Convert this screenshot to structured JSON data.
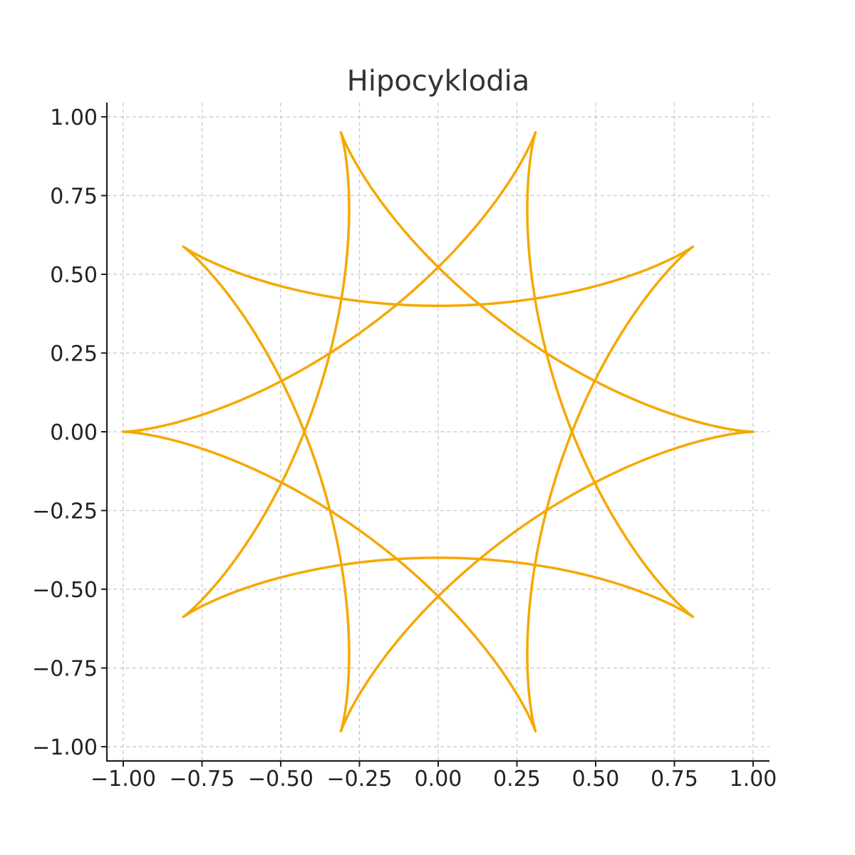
{
  "chart_data": {
    "type": "line",
    "title": "Hipocyklodia",
    "xlabel": "",
    "ylabel": "",
    "xlim": [
      -1.05,
      1.05
    ],
    "ylim": [
      -1.05,
      1.05
    ],
    "grid": true,
    "legend": "none",
    "color": "#f5a800",
    "xticks": [
      -1.0,
      -0.75,
      -0.5,
      -0.25,
      0.0,
      0.25,
      0.5,
      0.75,
      1.0
    ],
    "xtick_labels": [
      "−1.00",
      "−0.75",
      "−0.50",
      "−0.25",
      "0.00",
      "0.25",
      "0.50",
      "0.75",
      "1.00"
    ],
    "yticks": [
      1.0,
      0.75,
      0.5,
      0.25,
      0.0,
      -0.25,
      -0.5,
      -0.75,
      -1.0
    ],
    "ytick_labels": [
      "1.00",
      "0.75",
      "0.50",
      "0.25",
      "0.00",
      "−0.25",
      "−0.50",
      "−0.75",
      "−1.00"
    ],
    "series": [
      {
        "curve": "hypocycloid",
        "R": 1.0,
        "r": 0.3,
        "t_end": 19.7,
        "x": [
          1.0,
          0.55
        ],
        "y": [
          0.0,
          0.26
        ]
      }
    ]
  }
}
